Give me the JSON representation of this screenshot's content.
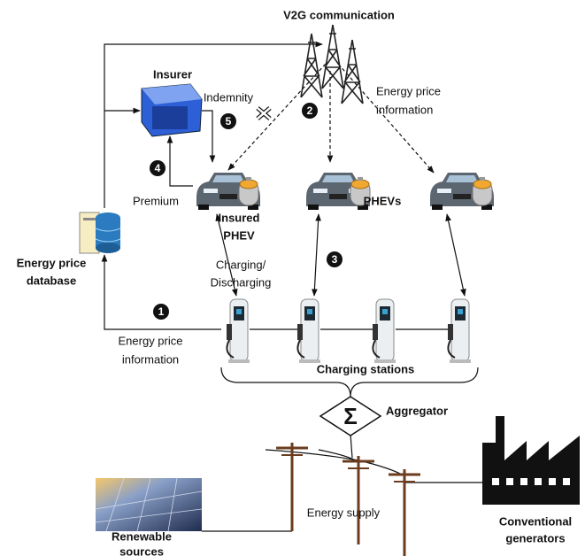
{
  "communication": {
    "label": "V2G communication"
  },
  "insurer": {
    "label": "Insurer"
  },
  "indemnity": "Indemnity",
  "premium": "Premium",
  "price_info_top": [
    "Energy price",
    "information"
  ],
  "insured_phev": [
    "Insured",
    "PHEV"
  ],
  "phevs": "PHEVs",
  "database": [
    "Energy price",
    "database"
  ],
  "charging": [
    "Charging/",
    "Discharging"
  ],
  "price_info_bottom": [
    "Energy price",
    "information"
  ],
  "stations": "Charging stations",
  "aggregator": "Aggregator",
  "supply": "Energy supply",
  "renewable": [
    "Renewable",
    "sources"
  ],
  "conventional": [
    "Conventional",
    "generators"
  ],
  "steps": [
    "1",
    "2",
    "3",
    "4",
    "5"
  ]
}
